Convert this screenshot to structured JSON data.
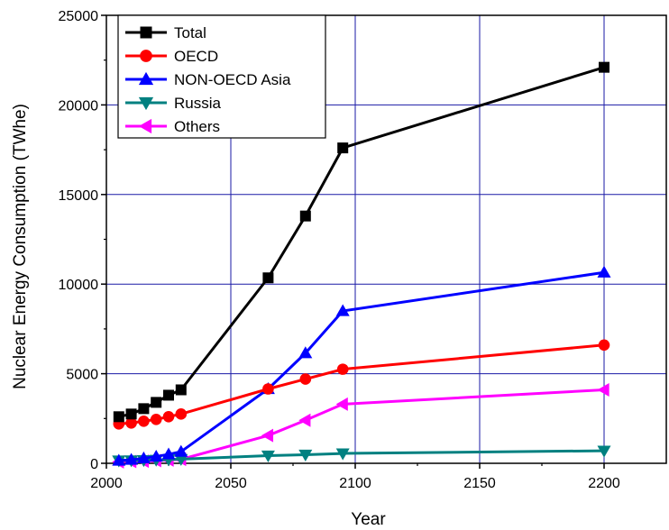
{
  "chart_data": {
    "type": "line",
    "title": "",
    "xlabel": "Year",
    "ylabel": "Nuclear Energy Consumption (TWhe)",
    "xlim": [
      2000,
      2225
    ],
    "ylim": [
      0,
      25000
    ],
    "x_ticks": [
      2000,
      2050,
      2100,
      2150,
      2200
    ],
    "y_ticks": [
      0,
      5000,
      10000,
      15000,
      20000,
      25000
    ],
    "grid": true,
    "legend_position": "top-left",
    "series": [
      {
        "name": "Total",
        "color": "#000000",
        "marker": "square",
        "x": [
          2005,
          2010,
          2015,
          2020,
          2025,
          2030,
          2065,
          2080,
          2095,
          2200
        ],
        "y": [
          2600,
          2750,
          3050,
          3400,
          3800,
          4100,
          10350,
          13800,
          17600,
          22100
        ]
      },
      {
        "name": "OECD",
        "color": "#ff0000",
        "marker": "circle",
        "x": [
          2005,
          2010,
          2015,
          2020,
          2025,
          2030,
          2065,
          2080,
          2095,
          2200
        ],
        "y": [
          2200,
          2250,
          2350,
          2450,
          2600,
          2750,
          4150,
          4700,
          5250,
          6600
        ]
      },
      {
        "name": "NON-OECD Asia",
        "color": "#0000ff",
        "marker": "triangle-up",
        "x": [
          2005,
          2010,
          2015,
          2020,
          2025,
          2030,
          2065,
          2080,
          2095,
          2200
        ],
        "y": [
          150,
          200,
          280,
          380,
          500,
          650,
          4150,
          6150,
          8500,
          10650
        ]
      },
      {
        "name": "Russia",
        "color": "#008080",
        "marker": "triangle-down",
        "x": [
          2005,
          2010,
          2015,
          2020,
          2025,
          2030,
          2065,
          2080,
          2095,
          2200
        ],
        "y": [
          150,
          160,
          170,
          190,
          210,
          230,
          430,
          480,
          550,
          700
        ]
      },
      {
        "name": "Others",
        "color": "#ff00ff",
        "marker": "triangle-left",
        "x": [
          2005,
          2010,
          2015,
          2020,
          2025,
          2030,
          2065,
          2080,
          2095,
          2200
        ],
        "y": [
          80,
          100,
          120,
          150,
          180,
          220,
          1550,
          2400,
          3300,
          4100
        ]
      }
    ]
  }
}
